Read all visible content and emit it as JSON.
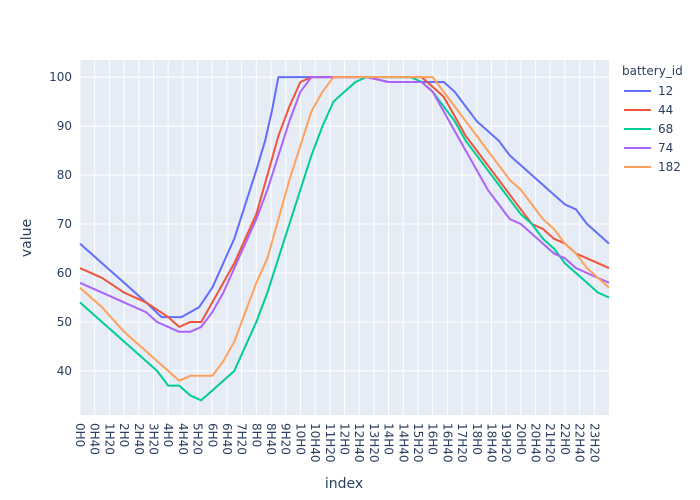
{
  "chart_data": {
    "type": "line",
    "title": "",
    "xlabel": "index",
    "ylabel": "value",
    "ylim": [
      31,
      103.5
    ],
    "yticks": [
      40,
      50,
      60,
      70,
      80,
      90,
      100
    ],
    "grid": true,
    "legend": {
      "title": "battery_id",
      "placement": "right"
    },
    "x_range_hours": [
      0,
      24
    ],
    "x_ticks": [
      "0H0",
      "0H40",
      "1H20",
      "2H0",
      "2H40",
      "3H20",
      "4H0",
      "4H40",
      "5H20",
      "6H0",
      "6H40",
      "7H20",
      "8H0",
      "8H40",
      "9H20",
      "10H0",
      "10H40",
      "11H20",
      "12H0",
      "12H40",
      "13H20",
      "14H0",
      "14H40",
      "15H20",
      "16H0",
      "16H40",
      "17H20",
      "18H0",
      "18H40",
      "19H20",
      "20H0",
      "20H40",
      "21H20",
      "22H0",
      "22H40",
      "23H20"
    ],
    "series": [
      {
        "name": "12",
        "color": "#636efa",
        "x": [
          0,
          1,
          2,
          3,
          3.7,
          4,
          4.6,
          5.4,
          6,
          7,
          7.5,
          8,
          8.4,
          8.7,
          9,
          9.3,
          9.6,
          10,
          11,
          12,
          13,
          14,
          15,
          15.5,
          16,
          16.5,
          17,
          17.5,
          18,
          18.5,
          19,
          19.5,
          20,
          20.5,
          21,
          21.5,
          22,
          22.5,
          23,
          23.5,
          24
        ],
        "y": [
          66,
          62,
          58,
          54,
          51,
          51,
          51,
          53,
          57,
          67,
          74,
          81,
          87,
          93,
          100,
          100,
          100,
          100,
          100,
          100,
          100,
          99,
          99,
          99,
          99,
          99,
          97,
          94,
          91,
          89,
          87,
          84,
          82,
          80,
          78,
          76,
          74,
          73,
          70,
          68,
          66
        ]
      },
      {
        "name": "44",
        "color": "#ef553b",
        "x": [
          0,
          1,
          2,
          3,
          4,
          4.5,
          5,
          5.5,
          6,
          7,
          8,
          8.5,
          9,
          9.5,
          10,
          10.5,
          11,
          12,
          13,
          14,
          15,
          15.5,
          16,
          16.5,
          17,
          17.5,
          18,
          18.5,
          19,
          19.5,
          20,
          20.5,
          21,
          21.5,
          22,
          22.5,
          23,
          23.5,
          24
        ],
        "y": [
          61,
          59,
          56,
          54,
          51,
          49,
          50,
          50,
          54,
          62,
          72,
          80,
          88,
          94,
          99,
          100,
          100,
          100,
          100,
          100,
          100,
          100,
          98,
          96,
          92,
          88,
          85,
          82,
          79,
          76,
          73,
          70,
          69,
          67,
          66,
          64,
          63,
          62,
          61
        ]
      },
      {
        "name": "68",
        "color": "#00cc96",
        "x": [
          0,
          0.5,
          1,
          1.5,
          2,
          2.5,
          3,
          3.5,
          4,
          4.5,
          5,
          5.5,
          6,
          6.5,
          7,
          7.5,
          8,
          8.5,
          9,
          9.5,
          10,
          10.5,
          11,
          11.5,
          12,
          12.5,
          13,
          13.5,
          14,
          14.5,
          15,
          15.5,
          16,
          16.5,
          17,
          17.5,
          18,
          18.5,
          19,
          19.5,
          20,
          20.5,
          21,
          21.5,
          22,
          22.5,
          23,
          23.5,
          24
        ],
        "y": [
          54,
          52,
          50,
          48,
          46,
          44,
          42,
          40,
          37,
          37,
          35,
          34,
          36,
          38,
          40,
          45,
          50,
          56,
          63,
          70,
          77,
          84,
          90,
          95,
          97,
          99,
          100,
          100,
          100,
          100,
          100,
          99,
          97,
          94,
          91,
          87,
          84,
          81,
          78,
          75,
          72,
          70,
          67,
          65,
          62,
          60,
          58,
          56,
          55
        ]
      },
      {
        "name": "74",
        "color": "#ab63fa",
        "x": [
          0,
          1,
          2,
          3,
          3.5,
          4,
          4.5,
          5,
          5.5,
          6,
          6.5,
          7,
          7.5,
          8,
          8.5,
          9,
          9.5,
          10,
          10.5,
          11,
          12,
          13,
          14,
          15,
          15.5,
          16,
          16.5,
          17,
          17.5,
          18,
          18.5,
          19,
          19.5,
          20,
          20.5,
          21,
          21.5,
          22,
          22.5,
          23,
          23.5,
          24
        ],
        "y": [
          58,
          56,
          54,
          52,
          50,
          49,
          48,
          48,
          49,
          52,
          56,
          61,
          66,
          71,
          77,
          84,
          91,
          97,
          100,
          100,
          100,
          100,
          99,
          99,
          99,
          97,
          93,
          89,
          85,
          81,
          77,
          74,
          71,
          70,
          68,
          66,
          64,
          63,
          61,
          60,
          59,
          58
        ]
      },
      {
        "name": "182",
        "color": "#ffa15a",
        "x": [
          0,
          1,
          2,
          3,
          3.5,
          4,
          4.5,
          5,
          5.5,
          6,
          6.5,
          7,
          7.5,
          8,
          8.5,
          9,
          9.5,
          10,
          10.5,
          11,
          11.5,
          12,
          13,
          14,
          15,
          15.5,
          16,
          16.5,
          17,
          17.5,
          18,
          18.5,
          19,
          19.5,
          20,
          20.5,
          21,
          21.5,
          22,
          22.5,
          23,
          23.5,
          24
        ],
        "y": [
          57,
          53,
          48,
          44,
          42,
          40,
          38,
          39,
          39,
          39,
          42,
          46,
          52,
          58,
          63,
          71,
          79,
          86,
          93,
          97,
          100,
          100,
          100,
          100,
          100,
          100,
          100,
          97,
          94,
          91,
          88,
          85,
          82,
          79,
          77,
          74,
          71,
          69,
          66,
          64,
          61,
          59,
          57
        ]
      }
    ]
  }
}
